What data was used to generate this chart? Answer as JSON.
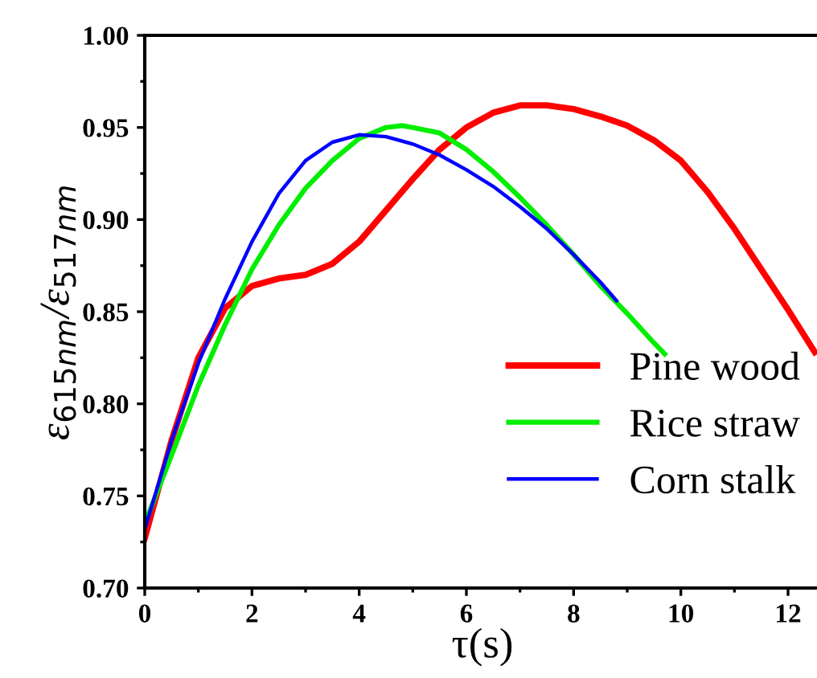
{
  "chart_data": {
    "type": "line",
    "xlabel": "τ(s)",
    "ylabel": "ε$_{615nm}$/ε$_{517nm}$",
    "xlim": [
      0,
      12.6
    ],
    "ylim": [
      0.7,
      1.0
    ],
    "xticks": [
      0,
      2,
      4,
      6,
      8,
      10,
      12
    ],
    "yticks": [
      {
        "value": 0.7,
        "label": "0.70"
      },
      {
        "value": 0.75,
        "label": "0.75"
      },
      {
        "value": 0.8,
        "label": "0.80"
      },
      {
        "value": 0.85,
        "label": "0.85"
      },
      {
        "value": 0.9,
        "label": "0.90"
      },
      {
        "value": 0.95,
        "label": "0.95"
      },
      {
        "value": 1.0,
        "label": "1.00"
      }
    ],
    "grid": false,
    "legend": "bottom right",
    "marker": "none",
    "line_style": "solid",
    "series": [
      {
        "name": "Pine wood",
        "color": "#ff0000",
        "x": [
          0,
          0.5,
          1,
          1.5,
          2,
          2.5,
          3,
          3.5,
          4,
          4.5,
          5,
          5.5,
          6,
          6.5,
          7,
          7.5,
          8,
          8.5,
          9,
          9.5,
          10,
          10.5,
          11,
          11.5,
          12,
          12.5
        ],
        "values": [
          0.727,
          0.78,
          0.825,
          0.852,
          0.864,
          0.868,
          0.87,
          0.876,
          0.888,
          0.905,
          0.922,
          0.938,
          0.95,
          0.958,
          0.962,
          0.962,
          0.96,
          0.956,
          0.951,
          0.943,
          0.932,
          0.915,
          0.895,
          0.873,
          0.851,
          0.828
        ]
      },
      {
        "name": "Rice straw",
        "color": "#00ee00",
        "x": [
          0,
          0.5,
          1,
          1.5,
          2,
          2.5,
          3,
          3.5,
          4,
          4.5,
          4.8,
          5,
          5.5,
          6,
          6.5,
          7,
          7.5,
          8,
          8.5,
          9,
          9.5,
          9.7
        ],
        "values": [
          0.735,
          0.772,
          0.81,
          0.843,
          0.873,
          0.897,
          0.917,
          0.932,
          0.944,
          0.95,
          0.951,
          0.95,
          0.947,
          0.938,
          0.926,
          0.912,
          0.897,
          0.881,
          0.864,
          0.849,
          0.833,
          0.827
        ]
      },
      {
        "name": "Corn stalk",
        "color": "#0000ff",
        "x": [
          0,
          0.5,
          1,
          1.5,
          2,
          2.5,
          3,
          3.5,
          4,
          4.5,
          5,
          5.5,
          6,
          6.5,
          7,
          7.5,
          8,
          8.5,
          8.8
        ],
        "values": [
          0.732,
          0.78,
          0.822,
          0.857,
          0.888,
          0.914,
          0.932,
          0.942,
          0.946,
          0.945,
          0.941,
          0.935,
          0.927,
          0.918,
          0.907,
          0.895,
          0.881,
          0.866,
          0.856
        ]
      }
    ]
  }
}
